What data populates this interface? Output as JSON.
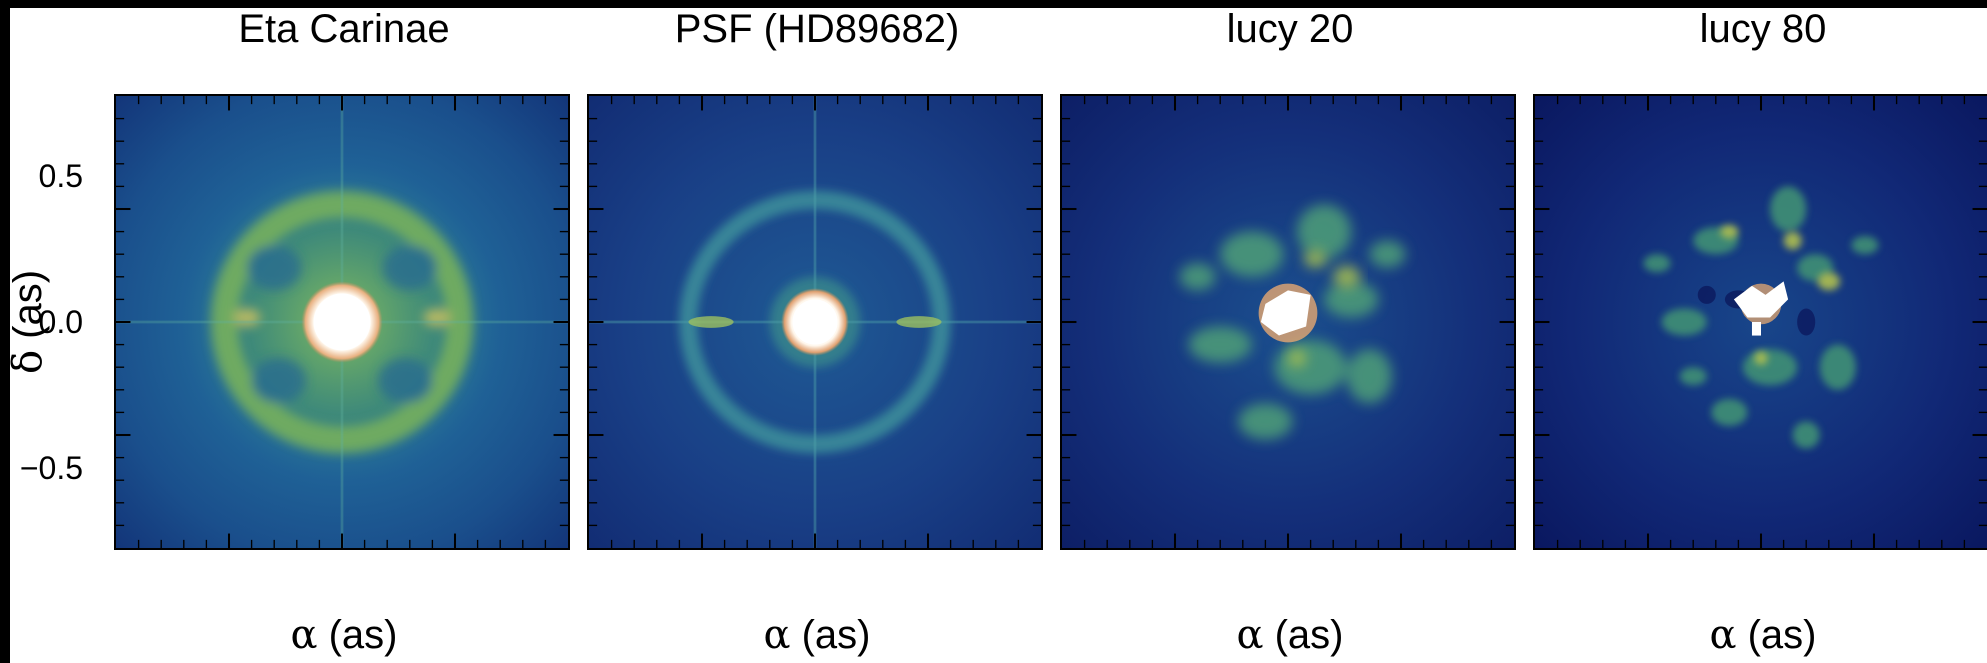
{
  "figure": {
    "ylabel_symbol": "δ",
    "ylabel_unit": " (as)",
    "yticks": [
      "0.5",
      "0.0",
      "−0.5"
    ],
    "panels": [
      {
        "title": "Eta Carinae",
        "xlabel_symbol": "α",
        "xlabel_unit": " (as)"
      },
      {
        "title": "PSF (HD89682)",
        "xlabel_symbol": "α",
        "xlabel_unit": " (as)"
      },
      {
        "title": "lucy 20",
        "xlabel_symbol": "α",
        "xlabel_unit": " (as)"
      },
      {
        "title": "lucy 80",
        "xlabel_symbol": "α",
        "xlabel_unit": " (as)"
      }
    ]
  }
}
